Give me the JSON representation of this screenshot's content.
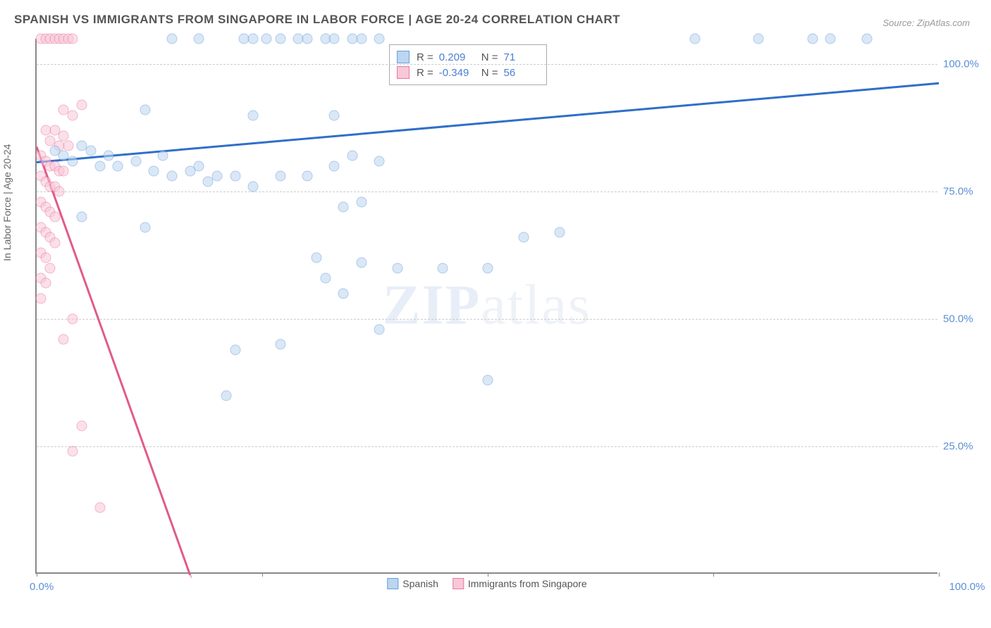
{
  "title": "SPANISH VS IMMIGRANTS FROM SINGAPORE IN LABOR FORCE | AGE 20-24 CORRELATION CHART",
  "source_prefix": "Source: ",
  "source_name": "ZipAtlas.com",
  "y_axis_label": "In Labor Force | Age 20-24",
  "watermark_a": "ZIP",
  "watermark_b": "atlas",
  "chart": {
    "type": "scatter",
    "xlim": [
      0,
      100
    ],
    "ylim": [
      0,
      105
    ],
    "y_ticks": [
      25,
      50,
      75,
      100
    ],
    "y_tick_labels": [
      "25.0%",
      "50.0%",
      "75.0%",
      "100.0%"
    ],
    "x_tick_positions": [
      0,
      50,
      100
    ],
    "x_tick_labels": [
      "0.0%",
      "",
      "100.0%"
    ],
    "x_minor_ticks": [
      25,
      75
    ],
    "background_color": "#ffffff",
    "grid_color": "#cccccc",
    "axis_color": "#888888",
    "point_radius": 7.5,
    "series": {
      "spanish": {
        "label": "Spanish",
        "fill": "#bcd5f0",
        "stroke": "#6a9fd8",
        "trend_color": "#2f6fc8",
        "trend_width": 3,
        "trend": {
          "x1": 0,
          "y1": 81,
          "x2": 100,
          "y2": 96.5
        },
        "R": "0.209",
        "N": "71",
        "points": [
          [
            15,
            105
          ],
          [
            18,
            105
          ],
          [
            23,
            105
          ],
          [
            24,
            105
          ],
          [
            25.5,
            105
          ],
          [
            27,
            105
          ],
          [
            29,
            105
          ],
          [
            30,
            105
          ],
          [
            32,
            105
          ],
          [
            33,
            105
          ],
          [
            35,
            105
          ],
          [
            36,
            105
          ],
          [
            38,
            105
          ],
          [
            73,
            105
          ],
          [
            80,
            105
          ],
          [
            86,
            105
          ],
          [
            88,
            105
          ],
          [
            92,
            105
          ],
          [
            12,
            91
          ],
          [
            24,
            90
          ],
          [
            33,
            90
          ],
          [
            2,
            83
          ],
          [
            3,
            82
          ],
          [
            4,
            81
          ],
          [
            5,
            84
          ],
          [
            6,
            83
          ],
          [
            7,
            80
          ],
          [
            8,
            82
          ],
          [
            9,
            80
          ],
          [
            11,
            81
          ],
          [
            13,
            79
          ],
          [
            14,
            82
          ],
          [
            15,
            78
          ],
          [
            17,
            79
          ],
          [
            18,
            80
          ],
          [
            19,
            77
          ],
          [
            20,
            78
          ],
          [
            22,
            78
          ],
          [
            24,
            76
          ],
          [
            27,
            78
          ],
          [
            30,
            78
          ],
          [
            33,
            80
          ],
          [
            35,
            82
          ],
          [
            38,
            81
          ],
          [
            5,
            70
          ],
          [
            12,
            68
          ],
          [
            34,
            72
          ],
          [
            36,
            73
          ],
          [
            54,
            66
          ],
          [
            58,
            67
          ],
          [
            31,
            62
          ],
          [
            36,
            61
          ],
          [
            40,
            60
          ],
          [
            45,
            60
          ],
          [
            50,
            60
          ],
          [
            32,
            58
          ],
          [
            34,
            55
          ],
          [
            27,
            45
          ],
          [
            38,
            48
          ],
          [
            22,
            44
          ],
          [
            50,
            38
          ],
          [
            21,
            35
          ]
        ]
      },
      "singapore": {
        "label": "Immigrants from Singapore",
        "fill": "#f8c8d8",
        "stroke": "#e977a0",
        "trend_color": "#e15b8a",
        "trend_width": 3,
        "trend": {
          "x1": 0,
          "y1": 84,
          "x2": 17,
          "y2": 0
        },
        "R": "-0.349",
        "N": "56",
        "points": [
          [
            0.5,
            105
          ],
          [
            1,
            105
          ],
          [
            1.5,
            105
          ],
          [
            2,
            105
          ],
          [
            2.5,
            105
          ],
          [
            3,
            105
          ],
          [
            3.5,
            105
          ],
          [
            4,
            105
          ],
          [
            5,
            92
          ],
          [
            3,
            91
          ],
          [
            4,
            90
          ],
          [
            1,
            87
          ],
          [
            2,
            87
          ],
          [
            3,
            86
          ],
          [
            1.5,
            85
          ],
          [
            2.5,
            84
          ],
          [
            3.5,
            84
          ],
          [
            0.5,
            82
          ],
          [
            1,
            81
          ],
          [
            1.5,
            80
          ],
          [
            2,
            80
          ],
          [
            2.5,
            79
          ],
          [
            3,
            79
          ],
          [
            0.5,
            78
          ],
          [
            1,
            77
          ],
          [
            1.5,
            76
          ],
          [
            2,
            76
          ],
          [
            2.5,
            75
          ],
          [
            0.5,
            73
          ],
          [
            1,
            72
          ],
          [
            1.5,
            71
          ],
          [
            2,
            70
          ],
          [
            0.5,
            68
          ],
          [
            1,
            67
          ],
          [
            1.5,
            66
          ],
          [
            2,
            65
          ],
          [
            0.5,
            63
          ],
          [
            1,
            62
          ],
          [
            1.5,
            60
          ],
          [
            0.5,
            58
          ],
          [
            1,
            57
          ],
          [
            0.5,
            54
          ],
          [
            4,
            50
          ],
          [
            3,
            46
          ],
          [
            5,
            29
          ],
          [
            4,
            24
          ],
          [
            7,
            13
          ]
        ]
      }
    }
  },
  "stats_labels": {
    "r": "R =",
    "eq": "",
    "n": "N ="
  }
}
